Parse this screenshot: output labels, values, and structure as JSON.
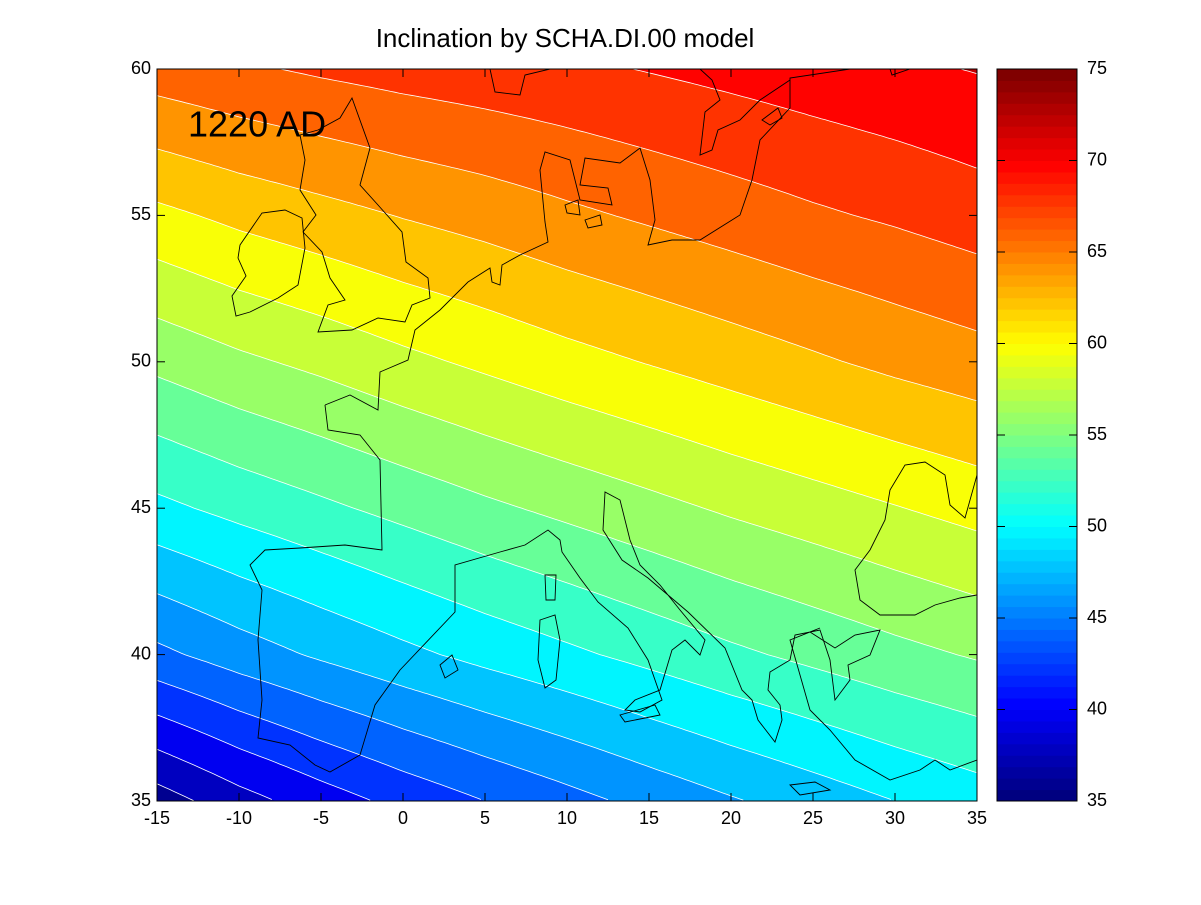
{
  "chart_data": {
    "type": "contourf",
    "title": "Inclination by SCHA.DI.00 model",
    "annotation": "1220 AD",
    "colormap": "jet",
    "line_color": "#ffffff",
    "x": [
      -15,
      -10,
      -5,
      0,
      5,
      10,
      15,
      20,
      25,
      30,
      35
    ],
    "y": [
      35,
      40,
      45,
      50,
      55,
      60
    ],
    "z": [
      [
        37,
        39.2,
        41,
        42.6,
        44,
        45.3,
        46.6,
        47.8,
        48.9,
        50,
        51
      ],
      [
        45.5,
        47,
        48.3,
        49.5,
        50.6,
        51.6,
        52.6,
        53.6,
        54.5,
        55.4,
        56.2
      ],
      [
        51.5,
        52.6,
        53.6,
        54.6,
        55.6,
        56.5,
        57.4,
        58.3,
        59.1,
        59.9,
        60.7
      ],
      [
        56.5,
        57.6,
        58.5,
        59.5,
        60.4,
        61.3,
        62.1,
        62.9,
        63.7,
        64.5,
        65.2
      ],
      [
        61.5,
        62.5,
        63.3,
        64.1,
        64.8,
        65.6,
        66.3,
        67,
        67.7,
        68.3,
        69
      ],
      [
        67,
        67.7,
        68.3,
        68.8,
        69.2,
        69.6,
        70.1,
        70.6,
        71.1,
        71.6,
        72.1
      ]
    ],
    "levels": [
      36,
      38,
      40,
      42,
      44,
      46,
      48,
      50,
      52,
      54,
      56,
      58,
      60,
      62,
      64,
      66,
      68,
      70,
      72,
      74
    ],
    "xlim": [
      -15,
      35
    ],
    "xticks": [
      -15,
      -10,
      -5,
      0,
      5,
      10,
      15,
      20,
      25,
      30,
      35
    ],
    "ylim": [
      35,
      60
    ],
    "yticks": [
      35,
      40,
      45,
      50,
      55,
      60
    ],
    "clim": [
      35,
      75
    ],
    "cticks": [
      35,
      40,
      45,
      50,
      55,
      60,
      65,
      70,
      75
    ]
  }
}
